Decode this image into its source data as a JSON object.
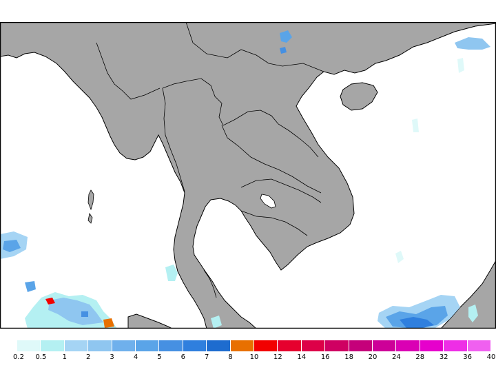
{
  "legend": {
    "labels": [
      "0.2",
      "0.5",
      "1",
      "2",
      "3",
      "4",
      "5",
      "6",
      "7",
      "8",
      "10",
      "12",
      "14",
      "16",
      "18",
      "20",
      "24",
      "28",
      "32",
      "36",
      "40"
    ],
    "colors": [
      "#dff9f9",
      "#b4f0f2",
      "#a5d4f4",
      "#8fc6f0",
      "#6fb0ec",
      "#5aa4e8",
      "#4690e2",
      "#2f7fde",
      "#1e6ccf",
      "#e87000",
      "#f20000",
      "#e6002e",
      "#dd0048",
      "#cf0062",
      "#c5007a",
      "#cd0098",
      "#da00b4",
      "#e600cc",
      "#ee2ee6",
      "#f060f0"
    ]
  },
  "map": {
    "land_color": "#a6a6a6",
    "sea_color": "#ffffff",
    "border_color": "#000000"
  }
}
